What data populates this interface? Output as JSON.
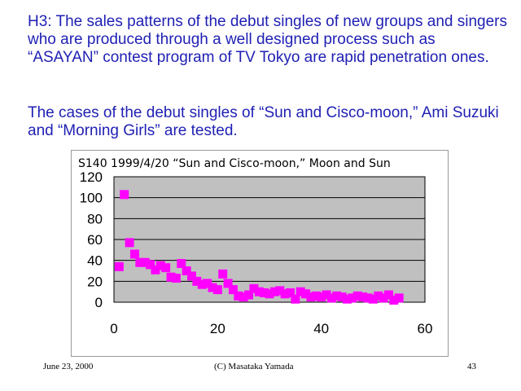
{
  "slide": {
    "paragraph1": "H3: The sales patterns of the debut singles of new groups and singers who are produced through a well designed process such as “ASAYAN” contest program of TV Tokyo are rapid penetration ones.",
    "paragraph2": "The cases of the debut singles of “Sun and Cisco-moon,” Ami Suzuki and “Morning Girls” are tested.",
    "text_color": "#1f1fb4"
  },
  "footer": {
    "date": "June 23, 2000",
    "copyright": "(C) Masataka Yamada",
    "page": "43"
  },
  "chart_data": {
    "type": "scatter",
    "title": "S140 1999/4/20 “Sun and Cisco-moon,” Moon and Sun",
    "xlabel": "",
    "ylabel": "",
    "xlim": [
      0,
      60
    ],
    "ylim": [
      0,
      120
    ],
    "x_ticks": [
      0,
      20,
      40,
      60
    ],
    "y_ticks": [
      0,
      20,
      40,
      60,
      80,
      100,
      120
    ],
    "grid": "horizontal",
    "plot_background": "#c0c0c0",
    "marker_color": "#ff00ff",
    "marker": "square",
    "series": [
      {
        "x": [
          1,
          2,
          3,
          4,
          5,
          6,
          7,
          8,
          9,
          10,
          11,
          12,
          13,
          14,
          15,
          16,
          17,
          18,
          19,
          20,
          21,
          22,
          23,
          24,
          25,
          26,
          27,
          28,
          29,
          30,
          31,
          32,
          33,
          34,
          35,
          36,
          37,
          38,
          39,
          40,
          41,
          42,
          43,
          44,
          45,
          46,
          47,
          48,
          49,
          50,
          51,
          52,
          53,
          54,
          55
        ],
        "y": [
          34,
          103,
          57,
          46,
          38,
          38,
          36,
          31,
          35,
          33,
          24,
          23,
          37,
          30,
          25,
          20,
          17,
          18,
          14,
          12,
          27,
          18,
          12,
          6,
          5,
          7,
          13,
          10,
          9,
          8,
          10,
          11,
          8,
          9,
          3,
          10,
          8,
          5,
          6,
          5,
          7,
          4,
          6,
          5,
          3,
          4,
          6,
          5,
          4,
          3,
          6,
          4,
          7,
          2,
          4
        ]
      }
    ]
  }
}
